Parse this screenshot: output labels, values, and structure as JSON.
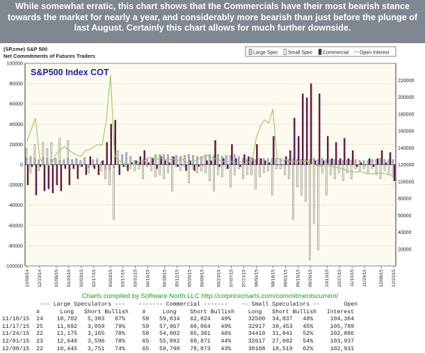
{
  "banner": {
    "text": "While somewhat erratic, this chart shows that the Commercials have their most bearish stance towards the market for nearly a year, and considerably more bearish than just before the plunge of last August. Certainly this chart allows for much further downside."
  },
  "header": {
    "ticker": "(SP,cme) S&P 500",
    "subtitle": "Net Commitments of Futures Traders"
  },
  "chart_data": {
    "type": "bar",
    "title": "S&P500 Index COT",
    "legend": [
      "Large Spec",
      "Small Spec",
      "Commercial",
      "Open Interest"
    ],
    "legend_position": "top-right",
    "colors": {
      "large_spec": "#c7c9f0",
      "small_spec": "#f3f1dd",
      "commercial": "#6b1c49",
      "open_interest": "#9acd6a",
      "background": "#fdfbef",
      "title": "#1d1db3",
      "footer": "#1aa11a"
    },
    "y_left": {
      "min": -100000,
      "max": 100000,
      "ticks": [
        100000,
        80000,
        60000,
        40000,
        20000,
        0,
        -20000,
        -40000,
        -60000,
        -80000,
        -100000
      ]
    },
    "y_right": {
      "min": 0,
      "max": 240000,
      "ticks": [
        220000,
        200000,
        180000,
        160000,
        140000,
        120000,
        100000,
        80000,
        60000,
        40000,
        20000
      ]
    },
    "x_tick_labels": [
      "12/09/14",
      "12/23/14",
      "01/06/15",
      "01/20/15",
      "02/03/15",
      "02/17/15",
      "03/03/15",
      "03/17/15",
      "03/31/15",
      "04/14/15",
      "04/28/15",
      "05/12/15",
      "05/26/15",
      "06/09/15",
      "06/23/15",
      "07/07/15",
      "07/21/15",
      "08/04/15",
      "08/18/15",
      "09/01/15",
      "09/15/15",
      "09/29/15",
      "10/13/15",
      "10/27/15",
      "11/10/15",
      "11/24/15",
      "12/08/15",
      "12/22/15"
    ],
    "series": [
      {
        "name": "Large Spec",
        "values": [
          6000,
          8000,
          6000,
          5000,
          7000,
          6000,
          5000,
          6000,
          4000,
          5000,
          6000,
          5000,
          5000,
          4000,
          7000,
          -3000,
          5000,
          4000,
          3000,
          -4000,
          -5000,
          -3000,
          3000,
          10000,
          12000,
          8000,
          4000,
          3000,
          5000,
          6000,
          6000,
          10000,
          10000,
          10000,
          10000,
          8000,
          9000,
          8000,
          9000,
          10000,
          9000,
          8000,
          8000,
          9000,
          10000,
          9000,
          10000,
          8000,
          9000,
          9000,
          10000,
          8000,
          6000,
          5000,
          7000,
          5000,
          6000,
          6000,
          6000,
          6000,
          6000,
          6000,
          5000,
          5000,
          6000,
          5000,
          5000,
          5000,
          5000,
          6000,
          5000,
          6000,
          5000,
          5000,
          5000,
          4000,
          4000,
          5000,
          4000,
          5000,
          4000,
          4000,
          4000,
          5000,
          5000,
          6000,
          5000,
          5000,
          5000
        ]
      },
      {
        "name": "Small Spec",
        "values": [
          16000,
          -8000,
          20000,
          -6000,
          22000,
          16000,
          22000,
          6000,
          26000,
          3000,
          24000,
          4000,
          6000,
          -2000,
          2000,
          -8000,
          -2000,
          6000,
          -6000,
          -14000,
          -20000,
          -54000,
          14000,
          6000,
          -2000,
          -4000,
          -6000,
          -4000,
          -14000,
          -2000,
          -6000,
          -12000,
          -10000,
          -14000,
          -8000,
          -26000,
          -2000,
          -6000,
          -2000,
          -18000,
          -4000,
          -8000,
          -6000,
          -8000,
          -16000,
          -26000,
          -10000,
          -12000,
          -4000,
          -22000,
          -10000,
          -4000,
          -14000,
          -10000,
          -10000,
          -24000,
          -12000,
          -8000,
          -6000,
          -30000,
          -4000,
          -4000,
          -10000,
          -14000,
          -54000,
          -22000,
          -30000,
          -36000,
          -94000,
          -58000,
          -84000,
          -8000,
          -30000,
          -10000,
          -14000,
          -8000,
          -16000,
          -8000,
          -14000,
          -4000,
          -6000,
          -4000,
          -8000,
          -4000,
          -10000,
          -14000,
          -6000,
          -10000,
          -12000
        ]
      },
      {
        "name": "Commercial",
        "values": [
          -20000,
          -2000,
          -30000,
          -2000,
          -26000,
          -24000,
          -28000,
          -20000,
          -26000,
          -4000,
          -20000,
          -4000,
          -14000,
          -2000,
          -10000,
          8000,
          -4000,
          -10000,
          4000,
          22000,
          40000,
          44000,
          -10000,
          -2000,
          -6000,
          2000,
          4000,
          8000,
          14000,
          2000,
          6000,
          -4000,
          8000,
          4000,
          2000,
          8000,
          -2000,
          0,
          -6000,
          4000,
          -6000,
          -2000,
          0,
          4000,
          4000,
          24000,
          -2000,
          6000,
          -4000,
          20000,
          6000,
          -2000,
          10000,
          8000,
          6000,
          20000,
          6000,
          4000,
          2000,
          28000,
          0,
          0,
          8000,
          14000,
          46000,
          28000,
          70000,
          66000,
          80000,
          4000,
          70000,
          4000,
          28000,
          6000,
          22000,
          6000,
          26000,
          6000,
          14000,
          -2000,
          2000,
          0,
          6000,
          -2000,
          6000,
          14000,
          2000,
          12000,
          -16000
        ]
      },
      {
        "name": "Open Interest",
        "values": [
          148000,
          162000,
          175000,
          128000,
          121000,
          119000,
          122000,
          133000,
          138000,
          141000,
          137000,
          134000,
          131000,
          130000,
          137000,
          138000,
          141000,
          144000,
          143000,
          172000,
          226000,
          131000,
          125000,
          122000,
          121000,
          120000,
          120000,
          124000,
          124000,
          128000,
          129000,
          126000,
          128000,
          126000,
          126000,
          127000,
          124000,
          128000,
          123000,
          123000,
          124000,
          127000,
          128000,
          132000,
          129000,
          127000,
          126000,
          124000,
          124000,
          124000,
          122000,
          124000,
          121000,
          123000,
          124000,
          152000,
          166000,
          173000,
          169000,
          186000,
          128000,
          125000,
          126000,
          124000,
          124000,
          124000,
          124000,
          125000,
          120000,
          120000,
          118000,
          119000,
          121000,
          118000,
          117000,
          116000,
          115000,
          112000,
          112000,
          111000,
          112000,
          110000,
          109000,
          109000,
          110000,
          110000,
          109000,
          108000,
          106000
        ]
      }
    ]
  },
  "footer": {
    "credit": "Charts compiled by Software North LLC  http://cotpricecharts.com/commitmentscurrent/"
  },
  "table": {
    "header1": "           --- Large Speculators ---    ------- Commercial -------    -- Small Speculators --       Open",
    "header2": "          #      Long   Short Bullish    #     Long    Short Bullish    Long   Short Bullish   Interest",
    "rows": [
      "11/10/15  24    10,702   5,383   67%     59   59,034   62,024   49%     32500  34,837   48%     104,304",
      "11/17/15  25    11,692   3,059   79%     59   57,967   60,064   49%     32917  39,453   45%     105,789",
      "11/24/15  22    11,175   3,165   78%     58   54,802   65,381   46%     34410  31,841   52%     102,886",
      "12/01/15  23    12,640   3,596   78%     65   55,892   69,871   44%     32617  27,682   54%     103,937",
      "12/08/15  22    10,445   3,751   74%     65   59,790   78,073   43%     30108  18,519   62%     102,931"
    ]
  }
}
